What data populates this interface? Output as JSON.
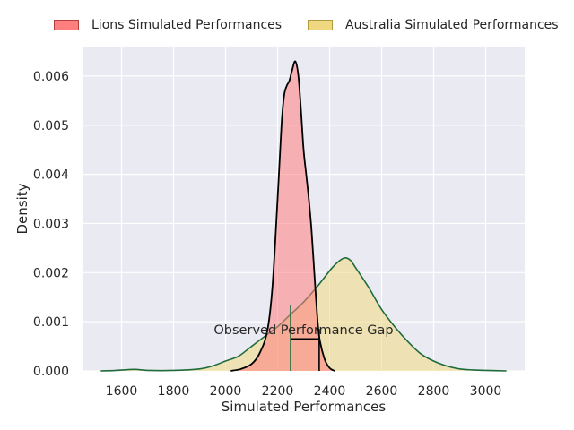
{
  "chart_data": {
    "type": "area",
    "title": "",
    "xlabel": "Simulated Performances",
    "ylabel": "Density",
    "xlim": [
      1450,
      3150
    ],
    "ylim": [
      0,
      0.0066
    ],
    "xticks": [
      1600,
      1800,
      2000,
      2200,
      2400,
      2600,
      2800,
      3000
    ],
    "yticks": [
      0.0,
      0.001,
      0.002,
      0.003,
      0.004,
      0.005,
      0.006
    ],
    "xtick_labels": [
      "1600",
      "1800",
      "2000",
      "2200",
      "2400",
      "2600",
      "2800",
      "3000"
    ],
    "ytick_labels": [
      "0.000",
      "0.001",
      "0.002",
      "0.003",
      "0.004",
      "0.005",
      "0.006"
    ],
    "grid": true,
    "legend_position": "top-center",
    "series": [
      {
        "name": "Lions Simulated Performances",
        "fill": "#ff7f7f",
        "line": "#000000",
        "points": [
          [
            2020,
            0.0
          ],
          [
            2060,
            4e-05
          ],
          [
            2100,
            0.00014
          ],
          [
            2130,
            0.00035
          ],
          [
            2160,
            0.0008
          ],
          [
            2180,
            0.0017
          ],
          [
            2200,
            0.0035
          ],
          [
            2215,
            0.005
          ],
          [
            2225,
            0.0056
          ],
          [
            2235,
            0.0058
          ],
          [
            2245,
            0.0059
          ],
          [
            2255,
            0.0061
          ],
          [
            2268,
            0.0063
          ],
          [
            2280,
            0.006
          ],
          [
            2290,
            0.0053
          ],
          [
            2300,
            0.0045
          ],
          [
            2310,
            0.004
          ],
          [
            2320,
            0.0035
          ],
          [
            2330,
            0.0029
          ],
          [
            2340,
            0.0021
          ],
          [
            2350,
            0.0013
          ],
          [
            2360,
            0.0007
          ],
          [
            2380,
            0.00025
          ],
          [
            2400,
            6e-05
          ],
          [
            2420,
            0.0
          ]
        ]
      },
      {
        "name": "Australia Simulated Performances",
        "fill": "#f0d880",
        "line": "#1e6b3c",
        "points": [
          [
            1520,
            0.0
          ],
          [
            1580,
            1e-05
          ],
          [
            1650,
            3e-05
          ],
          [
            1700,
            1e-05
          ],
          [
            1800,
            1e-05
          ],
          [
            1900,
            4e-05
          ],
          [
            1950,
            0.0001
          ],
          [
            2000,
            0.0002
          ],
          [
            2050,
            0.0003
          ],
          [
            2100,
            0.0005
          ],
          [
            2150,
            0.0007
          ],
          [
            2200,
            0.0009
          ],
          [
            2250,
            0.00115
          ],
          [
            2300,
            0.0014
          ],
          [
            2350,
            0.0017
          ],
          [
            2380,
            0.0019
          ],
          [
            2410,
            0.0021
          ],
          [
            2440,
            0.00225
          ],
          [
            2460,
            0.0023
          ],
          [
            2480,
            0.00225
          ],
          [
            2500,
            0.0021
          ],
          [
            2550,
            0.0017
          ],
          [
            2600,
            0.00125
          ],
          [
            2650,
            0.0009
          ],
          [
            2700,
            0.0006
          ],
          [
            2750,
            0.00035
          ],
          [
            2800,
            0.0002
          ],
          [
            2850,
            0.0001
          ],
          [
            2900,
            4e-05
          ],
          [
            2950,
            2e-05
          ],
          [
            3000,
            1e-05
          ],
          [
            3080,
            0.0
          ]
        ]
      }
    ],
    "annotation": {
      "text": "Observed Performance Gap",
      "x": 2300,
      "y": 0.00075,
      "bracket_x_start": 2250,
      "bracket_x_end": 2360,
      "bracket_y": 0.00065,
      "lions_mean_line": {
        "x": 2250,
        "y_top": 0.00135
      },
      "australia_mean_line": {
        "x": 2360,
        "y_top": 0.00085
      }
    }
  }
}
